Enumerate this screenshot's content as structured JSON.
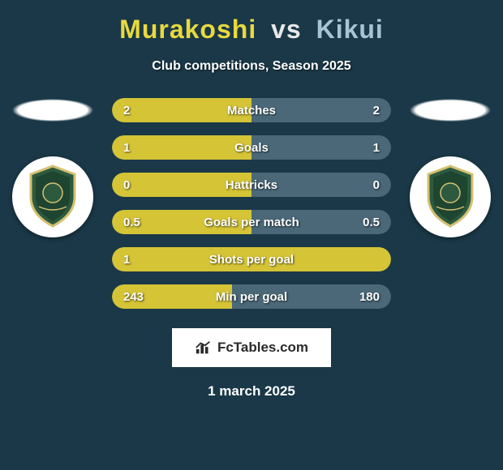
{
  "title": {
    "player1": "Murakoshi",
    "vs": "vs",
    "player2": "Kikui",
    "player1_color": "#e8d93e",
    "vs_color": "#e8e8e8",
    "player2_color": "#a8c4d4",
    "fontsize": 32
  },
  "subtitle": "Club competitions, Season 2025",
  "subtitle_fontsize": 16,
  "background_color": "#1a3847",
  "bar_color_left": "#d4c436",
  "bar_color_right": "#4a6878",
  "text_color": "#ffffff",
  "stats": [
    {
      "label": "Matches",
      "left_val": "2",
      "right_val": "2",
      "left_pct": 50,
      "right_pct": 50
    },
    {
      "label": "Goals",
      "left_val": "1",
      "right_val": "1",
      "left_pct": 50,
      "right_pct": 50
    },
    {
      "label": "Hattricks",
      "left_val": "0",
      "right_val": "0",
      "left_pct": 50,
      "right_pct": 50
    },
    {
      "label": "Goals per match",
      "left_val": "0.5",
      "right_val": "0.5",
      "left_pct": 50,
      "right_pct": 50
    },
    {
      "label": "Shots per goal",
      "left_val": "1",
      "right_val": "",
      "left_pct": 100,
      "right_pct": 0
    },
    {
      "label": "Min per goal",
      "left_val": "243",
      "right_val": "180",
      "left_pct": 43,
      "right_pct": 57
    }
  ],
  "stat_label_fontsize": 15,
  "stat_row_height": 30,
  "stat_row_gap": 16,
  "branding_text": "FcTables.com",
  "date_text": "1 march 2025",
  "team_badge": {
    "shield_fill": "#2d5a3f",
    "shield_stroke": "#d4c070",
    "background": "#ffffff"
  }
}
